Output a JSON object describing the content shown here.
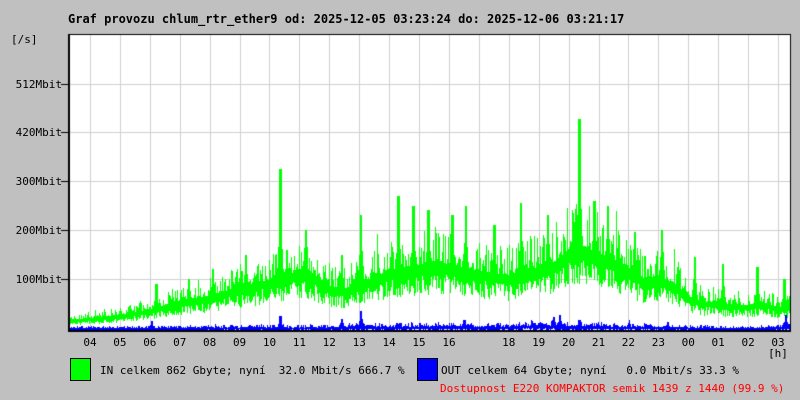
{
  "title": "Graf provozu chlum_rtr_ether9 od: 2025-12-05 03:23:24 do: 2025-12-06 03:21:17",
  "y_unit_label": "[/s]",
  "x_unit_label": "[h]",
  "legend": {
    "in_label": "IN celkem 862 Gbyte; nyní  32.0 Mbit/s 666.7 %",
    "out_label": "OUT celkem 64 Gbyte; nyní   0.0 Mbit/s 33.3 %"
  },
  "availability_text": "Dostupnost E220 KOMPAKTOR semik 1439 z 1440 (99.9 %)",
  "colors": {
    "background": "#c0c0c0",
    "plot_background": "#ffffff",
    "grid": "#d0d0d0",
    "border": "#000000",
    "in_series": "#00ff00",
    "out_series": "#0000ff",
    "availability": "#ff0000",
    "text": "#000000"
  },
  "chart_data": {
    "type": "area",
    "title": "Graf provozu chlum_rtr_ether9 od: 2025-12-05 03:23:24 do: 2025-12-06 03:21:17",
    "xlabel": "[h]",
    "ylabel": "[/s]",
    "x_axis": {
      "tick_labels": [
        "04",
        "05",
        "06",
        "07",
        "08",
        "09",
        "10",
        "11",
        "12",
        "13",
        "14",
        "15",
        "16",
        "18",
        "19",
        "20",
        "21",
        "22",
        "23",
        "00",
        "01",
        "02",
        "03"
      ],
      "tick_hours": [
        4,
        5,
        6,
        7,
        8,
        9,
        10,
        11,
        12,
        13,
        14,
        15,
        16,
        18,
        19,
        20,
        21,
        22,
        23,
        24,
        25,
        26,
        27
      ],
      "grid_hours_range": [
        4,
        27
      ],
      "data_hour_range": [
        3.33,
        27.37
      ]
    },
    "y_axis": {
      "tick_labels": [
        "100Mbit",
        "200Mbit",
        "300Mbit",
        "420Mbit",
        "512Mbit"
      ],
      "tick_values": [
        100,
        200,
        300,
        420,
        512
      ],
      "baseline_value": 0,
      "unit": "Mbit/s"
    },
    "series": [
      {
        "name": "IN",
        "color": "#00ff00",
        "unit": "Mbit/s",
        "total": "862 Gbyte",
        "current": "32.0 Mbit/s",
        "percent": "666.7 %",
        "noise": 0.38,
        "seed": 42,
        "anchors_hour_mbit": [
          [
            3.33,
            18
          ],
          [
            4,
            22
          ],
          [
            5,
            28
          ],
          [
            6,
            38
          ],
          [
            7,
            52
          ],
          [
            8,
            62
          ],
          [
            9,
            78
          ],
          [
            10,
            92
          ],
          [
            10.5,
            100
          ],
          [
            11,
            110
          ],
          [
            11.5,
            100
          ],
          [
            12,
            80
          ],
          [
            12.5,
            75
          ],
          [
            13,
            90
          ],
          [
            13.5,
            95
          ],
          [
            14,
            110
          ],
          [
            15,
            118
          ],
          [
            15.5,
            125
          ],
          [
            16,
            120
          ],
          [
            17,
            108
          ],
          [
            18,
            100
          ],
          [
            19,
            115
          ],
          [
            19.5,
            125
          ],
          [
            20,
            150
          ],
          [
            20.5,
            155
          ],
          [
            21,
            140
          ],
          [
            21.5,
            130
          ],
          [
            22,
            110
          ],
          [
            22.5,
            95
          ],
          [
            23,
            98
          ],
          [
            23.5,
            85
          ],
          [
            24,
            60
          ],
          [
            24.5,
            52
          ],
          [
            25,
            50
          ],
          [
            25.5,
            46
          ],
          [
            26,
            45
          ],
          [
            26.5,
            50
          ],
          [
            27,
            40
          ],
          [
            27.37,
            45
          ]
        ],
        "spikes_hour_mbit": [
          [
            6.2,
            90
          ],
          [
            7.3,
            100
          ],
          [
            8.1,
            120
          ],
          [
            9.2,
            150
          ],
          [
            10.35,
            330
          ],
          [
            11.2,
            200
          ],
          [
            12.4,
            150
          ],
          [
            13.05,
            230
          ],
          [
            14.3,
            270
          ],
          [
            14.8,
            250
          ],
          [
            15.3,
            240
          ],
          [
            16.1,
            230
          ],
          [
            16.55,
            250
          ],
          [
            17.5,
            210
          ],
          [
            18.4,
            255
          ],
          [
            19.3,
            230
          ],
          [
            20.35,
            445
          ],
          [
            20.85,
            260
          ],
          [
            21.3,
            250
          ],
          [
            22.2,
            195
          ],
          [
            23.1,
            200
          ],
          [
            24.2,
            145
          ],
          [
            25.15,
            130
          ],
          [
            26.3,
            125
          ],
          [
            27.2,
            100
          ]
        ]
      },
      {
        "name": "OUT",
        "color": "#0000ff",
        "unit": "Mbit/s",
        "total": "64 Gbyte",
        "current": "0.0 Mbit/s",
        "percent": "33.3 %",
        "noise": 1.0,
        "seed": 7,
        "anchors_hour_mbit": [
          [
            3.33,
            3
          ],
          [
            6,
            3
          ],
          [
            8,
            4
          ],
          [
            10,
            4
          ],
          [
            12,
            4
          ],
          [
            13,
            6
          ],
          [
            14,
            5
          ],
          [
            16,
            6
          ],
          [
            18,
            5
          ],
          [
            19,
            8
          ],
          [
            20,
            6
          ],
          [
            21,
            6
          ],
          [
            22,
            5
          ],
          [
            23,
            5
          ],
          [
            24,
            4
          ],
          [
            25,
            3
          ],
          [
            26,
            3
          ],
          [
            27.37,
            5
          ]
        ],
        "spikes_hour_mbit": [
          [
            6.05,
            18
          ],
          [
            10.35,
            28
          ],
          [
            12.4,
            22
          ],
          [
            13.05,
            38
          ],
          [
            16.5,
            20
          ],
          [
            19.5,
            25
          ],
          [
            19.7,
            30
          ],
          [
            20.35,
            20
          ],
          [
            23.3,
            15
          ],
          [
            27.25,
            30
          ]
        ]
      }
    ]
  }
}
